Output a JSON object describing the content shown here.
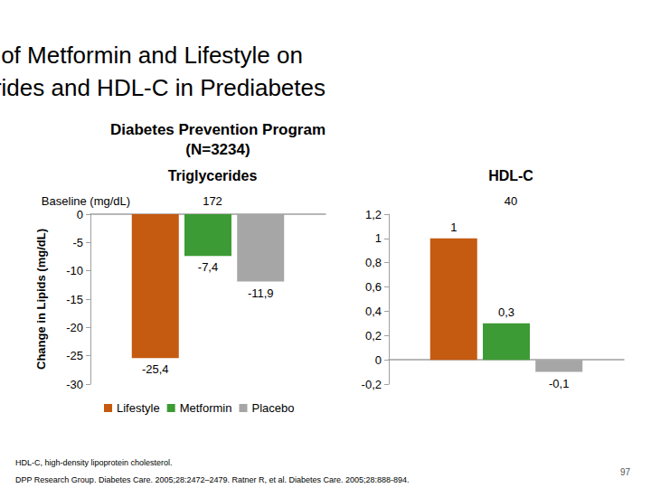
{
  "title": "Effect of Metformin and Lifestyle on\nTriglycerides and HDL-C in Prediabetes",
  "subtitle": "Diabetes Prevention Program\n(N=3234)",
  "baseline_label": "Baseline (mg/dL)",
  "footnote": "HDL-C, high-density lipoprotein cholesterol.",
  "citation": "DPP Research Group. Diabetes Care. 2005;28:2472–2479. Ratner R, et al. Diabetes Care. 2005;28:888-894.",
  "page_number": 97,
  "chart_data": [
    {
      "type": "bar",
      "title": "Triglycerides",
      "baseline": 172,
      "ylabel": "Change in Lipids (mg/dL)",
      "categories": [
        null
      ],
      "ylim": [
        -30,
        0
      ],
      "yticks": [
        -30,
        -25,
        -20,
        -15,
        -10,
        -5,
        0
      ],
      "grid": false,
      "data_labels": true,
      "legend": "bottom",
      "series": [
        {
          "name": "Lifestyle",
          "color": "#c55a11",
          "values": [
            -25.4
          ],
          "value_labels": [
            "-25,4"
          ]
        },
        {
          "name": "Metformin",
          "color": "#3d9b35",
          "values": [
            -7.4
          ],
          "value_labels": [
            "-7,4"
          ]
        },
        {
          "name": "Placebo",
          "color": "#a6a6a6",
          "values": [
            -11.9
          ],
          "value_labels": [
            "-11,9"
          ]
        }
      ]
    },
    {
      "type": "bar",
      "title": "HDL-C",
      "baseline": 40,
      "categories": [
        null
      ],
      "ylim": [
        -0.2,
        1.2
      ],
      "yticks": [
        {
          "value": -0.2,
          "label": "-0,2"
        },
        0,
        {
          "value": 0.2,
          "label": "0,2"
        },
        {
          "value": 0.4,
          "label": "0,4"
        },
        {
          "value": 0.6,
          "label": "0,6"
        },
        {
          "value": 0.8,
          "label": "0,8"
        },
        1,
        {
          "value": 1.2,
          "label": "1,2"
        }
      ],
      "grid": false,
      "data_labels": true,
      "series": [
        {
          "name": "Lifestyle",
          "color": "#c55a11",
          "values": [
            1
          ],
          "value_labels": [
            "1"
          ]
        },
        {
          "name": "Metformin",
          "color": "#3d9b35",
          "values": [
            0.3
          ],
          "value_labels": [
            "0,3"
          ]
        },
        {
          "name": "Placebo",
          "color": "#a6a6a6",
          "values": [
            -0.1
          ],
          "value_labels": [
            "-0,1"
          ]
        }
      ]
    }
  ]
}
